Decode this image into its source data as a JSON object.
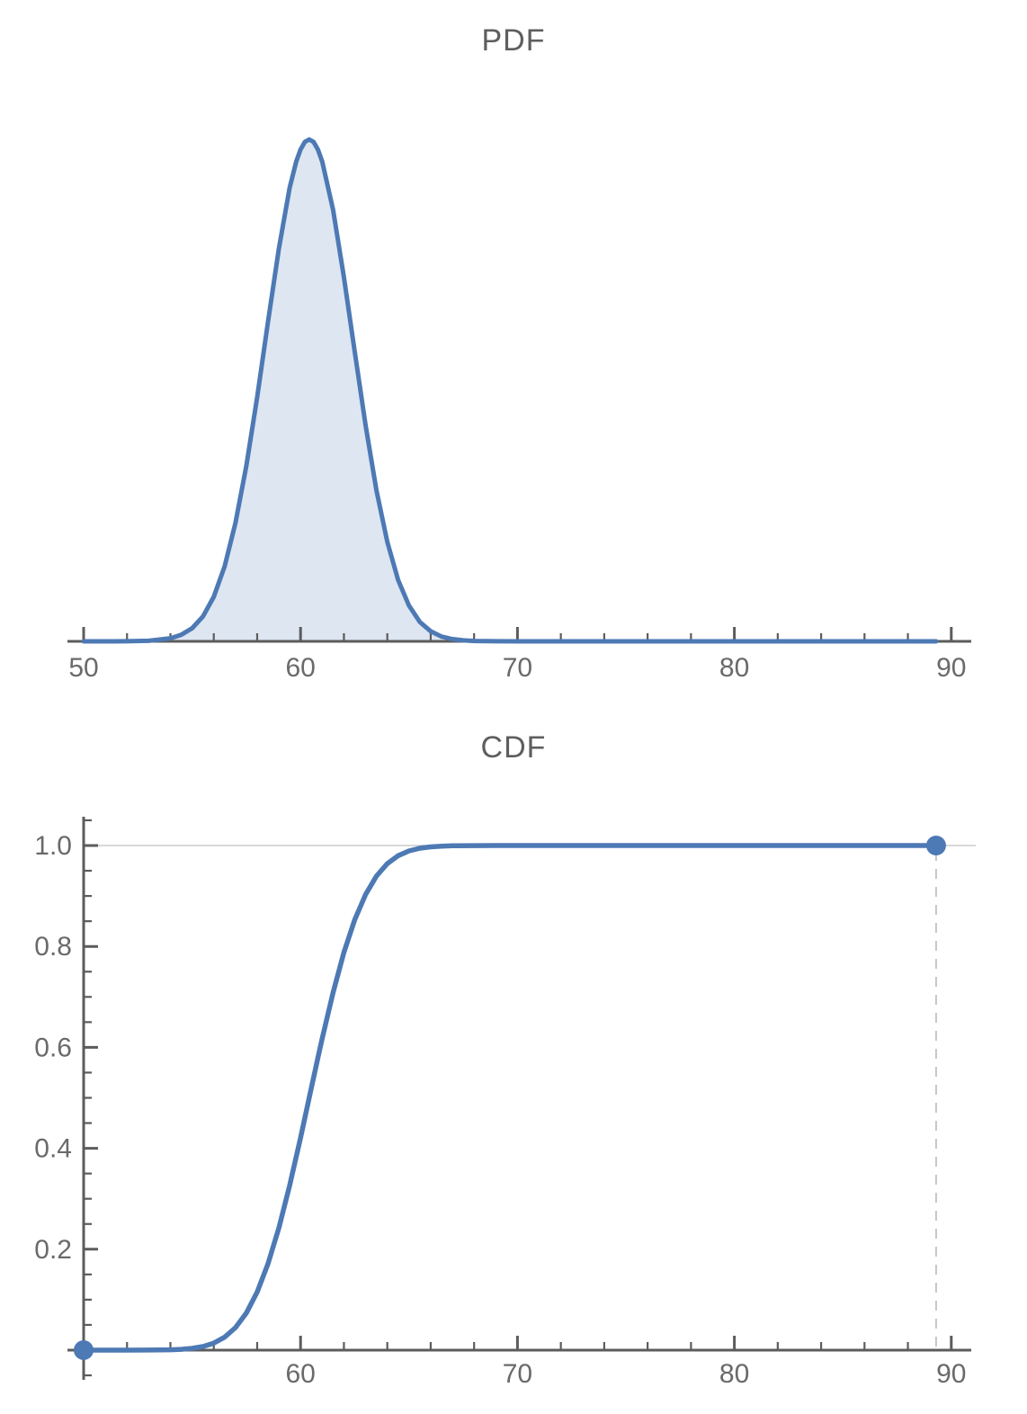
{
  "colors": {
    "curve": "#4d79b4",
    "fill_opacity": 0.19,
    "axis": "#5c5c5c",
    "tick_label": "#6a6a6a",
    "title": "#5e5e5e",
    "gridline": "#cbcbcb",
    "dashed_line": "#c6c6c6"
  },
  "chart_data": [
    {
      "type": "area",
      "title": "PDF",
      "xlabel": "",
      "ylabel": "",
      "xlim": [
        49.2,
        91.0
      ],
      "ylim": [
        0,
        0.21
      ],
      "legend": "none",
      "grid": "off",
      "x_ticks": [
        {
          "v": 50,
          "label": "50"
        },
        {
          "v": 60,
          "label": "60"
        },
        {
          "v": 70,
          "label": "70"
        },
        {
          "v": 80,
          "label": "80"
        },
        {
          "v": 90,
          "label": "90"
        }
      ],
      "x_minor_ticks": [
        52,
        54,
        56,
        58,
        62,
        64,
        66,
        68,
        72,
        74,
        76,
        78,
        82,
        84,
        86,
        88
      ],
      "points": [
        [
          50,
          0
        ],
        [
          51,
          1e-05
        ],
        [
          52,
          3e-05
        ],
        [
          53,
          0.00021
        ],
        [
          54,
          0.0012
        ],
        [
          54.5,
          0.0026
        ],
        [
          55,
          0.0052
        ],
        [
          55.5,
          0.0099
        ],
        [
          56,
          0.0177
        ],
        [
          56.5,
          0.0298
        ],
        [
          57,
          0.047
        ],
        [
          57.5,
          0.0697
        ],
        [
          58,
          0.0971
        ],
        [
          58.5,
          0.127
        ],
        [
          59,
          0.1561
        ],
        [
          59.5,
          0.1803
        ],
        [
          59.8,
          0.1907
        ],
        [
          60,
          0.1955
        ],
        [
          60.2,
          0.1985
        ],
        [
          60.4,
          0.1995
        ],
        [
          60.6,
          0.1985
        ],
        [
          60.8,
          0.1955
        ],
        [
          61,
          0.1907
        ],
        [
          61.5,
          0.1715
        ],
        [
          62,
          0.1448
        ],
        [
          62.5,
          0.115
        ],
        [
          63,
          0.0857
        ],
        [
          63.5,
          0.06
        ],
        [
          64,
          0.0395
        ],
        [
          64.5,
          0.0244
        ],
        [
          65,
          0.0142
        ],
        [
          65.5,
          0.0077
        ],
        [
          66,
          0.004
        ],
        [
          66.5,
          0.0019
        ],
        [
          67,
          0.0009
        ],
        [
          67.5,
          0.0004
        ],
        [
          68,
          0.00015
        ],
        [
          69,
          2e-05
        ],
        [
          70,
          0
        ],
        [
          72,
          0
        ],
        [
          75,
          0
        ],
        [
          80,
          0
        ],
        [
          85,
          0
        ],
        [
          89.3,
          0
        ]
      ]
    },
    {
      "type": "line",
      "title": "CDF",
      "xlabel": "",
      "ylabel": "",
      "xlim": [
        49.2,
        91.0
      ],
      "ylim": [
        0,
        1.05
      ],
      "legend": "none",
      "grid": "off",
      "gridline_y": 1.0,
      "dropline_x": 89.3,
      "markers": [
        {
          "x": 50,
          "y": 0
        },
        {
          "x": 89.3,
          "y": 1
        }
      ],
      "x_ticks": [
        {
          "v": 60,
          "label": "60"
        },
        {
          "v": 70,
          "label": "70"
        },
        {
          "v": 80,
          "label": "80"
        },
        {
          "v": 90,
          "label": "90"
        }
      ],
      "x_minor_ticks": [
        52,
        54,
        56,
        58,
        62,
        64,
        66,
        68,
        72,
        74,
        76,
        78,
        82,
        84,
        86,
        88
      ],
      "y_ticks": [
        {
          "v": 0.2,
          "label": "0.2"
        },
        {
          "v": 0.4,
          "label": "0.4"
        },
        {
          "v": 0.6,
          "label": "0.6"
        },
        {
          "v": 0.8,
          "label": "0.8"
        },
        {
          "v": 1.0,
          "label": "1.0"
        }
      ],
      "y_minor_ticks": [
        -0.05,
        0.05,
        0.1,
        0.15,
        0.25,
        0.3,
        0.35,
        0.45,
        0.5,
        0.55,
        0.65,
        0.7,
        0.75,
        0.85,
        0.9,
        0.95,
        1.05
      ],
      "points": [
        [
          50,
          0
        ],
        [
          52,
          0
        ],
        [
          53,
          0.0001
        ],
        [
          54,
          0.0007
        ],
        [
          54.5,
          0.0016
        ],
        [
          55,
          0.0035
        ],
        [
          55.5,
          0.0071
        ],
        [
          56,
          0.0139
        ],
        [
          56.5,
          0.0256
        ],
        [
          57,
          0.0446
        ],
        [
          57.5,
          0.0735
        ],
        [
          58,
          0.1151
        ],
        [
          58.5,
          0.1711
        ],
        [
          59,
          0.242
        ],
        [
          59.5,
          0.3264
        ],
        [
          60,
          0.4207
        ],
        [
          60.4,
          0.5
        ],
        [
          60.8,
          0.5793
        ],
        [
          61,
          0.6179
        ],
        [
          61.5,
          0.7088
        ],
        [
          62,
          0.7881
        ],
        [
          62.5,
          0.8531
        ],
        [
          63,
          0.9032
        ],
        [
          63.5,
          0.9394
        ],
        [
          64,
          0.9641
        ],
        [
          64.5,
          0.9798
        ],
        [
          65,
          0.9893
        ],
        [
          65.5,
          0.9946
        ],
        [
          66,
          0.9974
        ],
        [
          66.5,
          0.9988
        ],
        [
          67,
          0.9995
        ],
        [
          68,
          0.9999
        ],
        [
          69,
          1
        ],
        [
          70,
          1
        ],
        [
          75,
          1
        ],
        [
          80,
          1
        ],
        [
          85,
          1
        ],
        [
          89.3,
          1
        ]
      ]
    }
  ]
}
